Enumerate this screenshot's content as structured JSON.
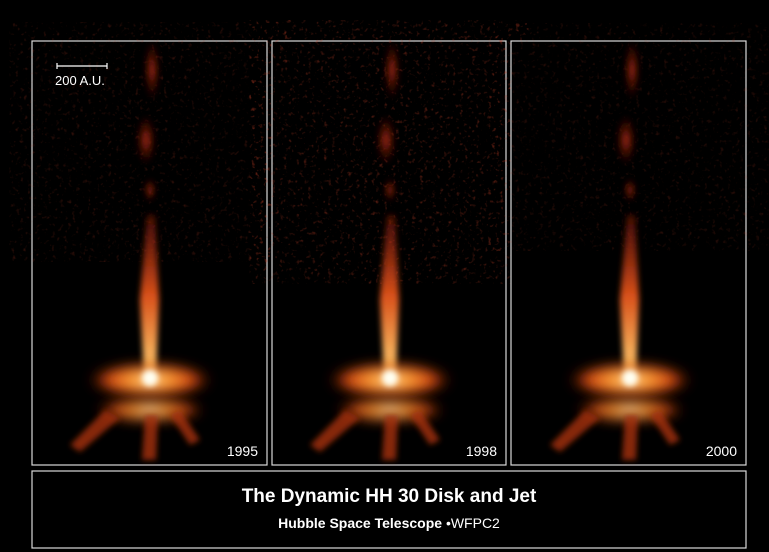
{
  "scale_bar": {
    "label": "200 A.U."
  },
  "panels": [
    {
      "year": "1995"
    },
    {
      "year": "1998"
    },
    {
      "year": "2000"
    }
  ],
  "caption": {
    "title": "The Dynamic HH 30 Disk and Jet",
    "observatory": "Hubble Space Telescope",
    "separator": "•",
    "instrument": "WFPC2"
  }
}
